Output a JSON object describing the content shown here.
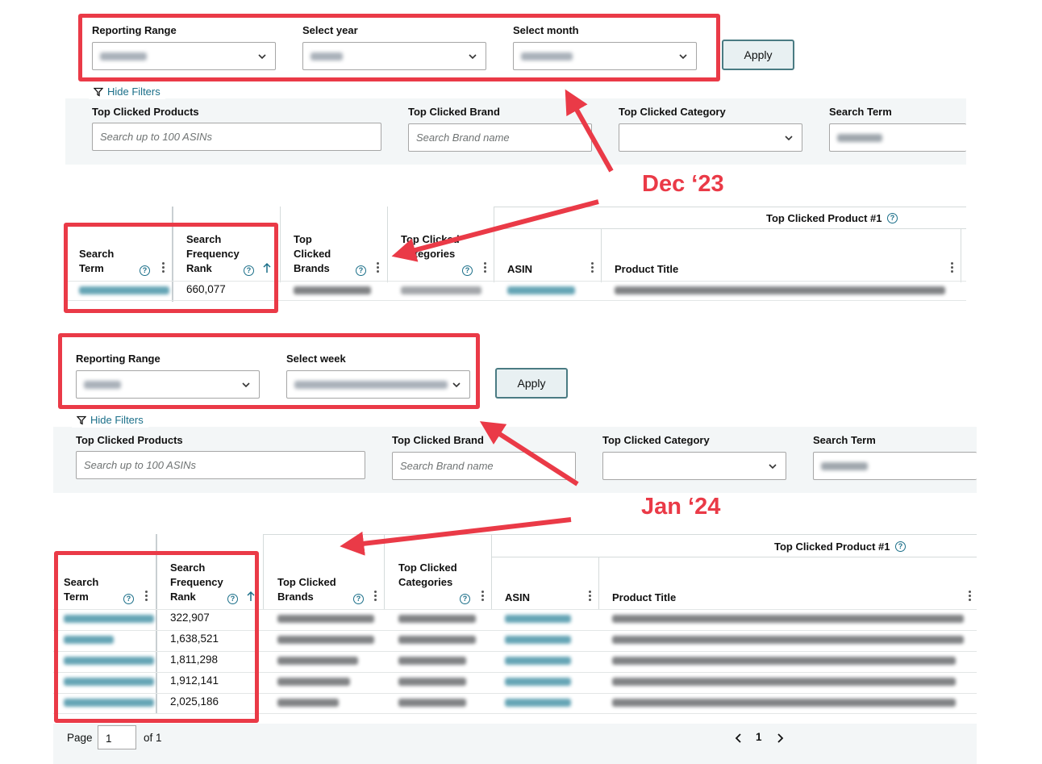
{
  "colors": {
    "accent_red": "#ea3a47",
    "link_teal": "#1b6f89",
    "button_border": "#4a7b83"
  },
  "annotations": {
    "dec_label": "Dec ‘23",
    "jan_label": "Jan ‘24"
  },
  "top": {
    "reporting_range_label": "Reporting Range",
    "select_year_label": "Select year",
    "select_month_label": "Select month",
    "apply_label": "Apply",
    "hide_filters_label": "Hide Filters",
    "filters": {
      "products_label": "Top Clicked Products",
      "products_placeholder": "Search up to 100 ASINs",
      "brand_label": "Top Clicked Brand",
      "brand_placeholder": "Search Brand name",
      "category_label": "Top Clicked Category",
      "search_term_label": "Search Term"
    },
    "table": {
      "group_header": "Top Clicked Product #1",
      "col_search_term": "Search Term",
      "col_sfr": "Search Frequency Rank",
      "col_brands": "Top Clicked Brands",
      "col_categories": "Top Clicked Categories",
      "col_asin": "ASIN",
      "col_title": "Product Title",
      "rows": [
        {
          "rank": "660,077"
        }
      ]
    }
  },
  "bottom": {
    "reporting_range_label": "Reporting Range",
    "select_week_label": "Select week",
    "apply_label": "Apply",
    "hide_filters_label": "Hide Filters",
    "filters": {
      "products_label": "Top Clicked Products",
      "products_placeholder": "Search up to 100 ASINs",
      "brand_label": "Top Clicked Brand",
      "brand_placeholder": "Search Brand name",
      "category_label": "Top Clicked Category",
      "search_term_label": "Search Term"
    },
    "table": {
      "group_header": "Top Clicked Product #1",
      "col_search_term": "Search Term",
      "col_sfr": "Search Frequency Rank",
      "col_brands": "Top Clicked Brands",
      "col_categories": "Top Clicked Categories",
      "col_asin": "ASIN",
      "col_title": "Product Title",
      "rows": [
        {
          "rank": "322,907"
        },
        {
          "rank": "1,638,521"
        },
        {
          "rank": "1,811,298"
        },
        {
          "rank": "1,912,141"
        },
        {
          "rank": "2,025,186"
        }
      ]
    },
    "pagination": {
      "page_label": "Page",
      "page_value": "1",
      "of_label": "of 1",
      "current": "1"
    }
  }
}
